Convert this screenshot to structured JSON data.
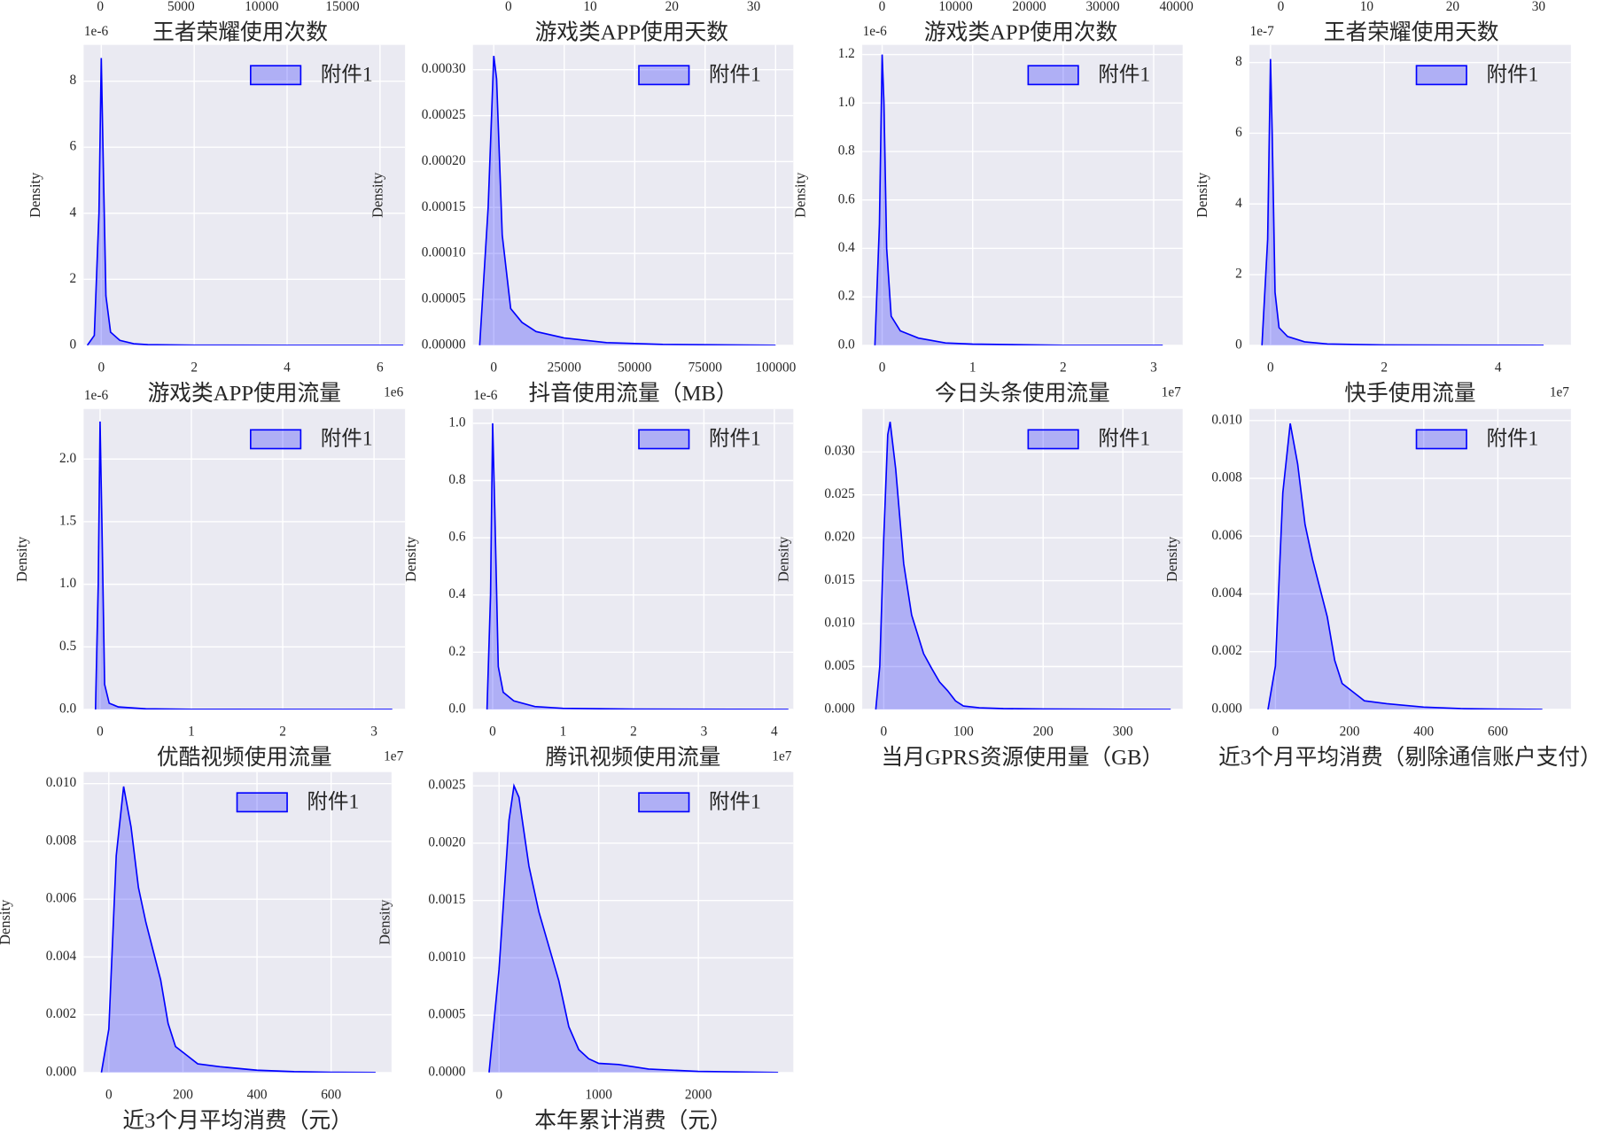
{
  "header_axes": [
    {
      "xticks": [
        0,
        5000,
        10000,
        15000
      ],
      "xlabel": "王者荣耀使用次数"
    },
    {
      "xticks": [
        0,
        10,
        20,
        30
      ],
      "xlabel": "游戏类APP使用天数"
    },
    {
      "xticks": [
        0,
        10000,
        20000,
        30000,
        40000
      ],
      "xlabel": "游戏类APP使用次数"
    },
    {
      "xticks": [
        0,
        10,
        20,
        30
      ],
      "xlabel": "王者荣耀使用天数"
    }
  ],
  "chart_data": [
    {
      "type": "kde",
      "xlabel": "游戏类APP使用流量",
      "ylabel": "Density",
      "x_offset": "1e6",
      "y_offset": "1e-6",
      "xlim": [
        -0.38,
        6.54
      ],
      "ylim": [
        0,
        9.1
      ],
      "xticks": [
        0,
        2,
        4,
        6
      ],
      "yticks": [
        0,
        2,
        4,
        6,
        8
      ],
      "grid": true,
      "x": [
        -0.3,
        -0.15,
        -0.05,
        0,
        0.05,
        0.1,
        0.2,
        0.4,
        0.7,
        1,
        2,
        4,
        6.5
      ],
      "series": [
        {
          "name": "附件1",
          "color": "#0000ff",
          "values": [
            0,
            0.3,
            4,
            8.7,
            5,
            1.5,
            0.4,
            0.15,
            0.05,
            0.02,
            0.005,
            0,
            0
          ]
        }
      ]
    },
    {
      "type": "kde",
      "xlabel": "抖音使用流量（MB）",
      "ylabel": "Density",
      "xlim": [
        -7400,
        106300
      ],
      "ylim": [
        0,
        0.000327
      ],
      "xticks": [
        0,
        25000,
        50000,
        75000,
        100000
      ],
      "yticks": [
        {
          "value": 0,
          "label": "0.00000"
        },
        {
          "value": 5e-05,
          "label": "0.00005"
        },
        {
          "value": 0.0001,
          "label": "0.00010"
        },
        {
          "value": 0.00015,
          "label": "0.00015"
        },
        {
          "value": 0.0002,
          "label": "0.00020"
        },
        {
          "value": 0.00025,
          "label": "0.00025"
        },
        {
          "value": 0.0003,
          "label": "0.00030"
        }
      ],
      "grid": true,
      "x": [
        -5000,
        -2000,
        0,
        1000,
        3000,
        6000,
        10000,
        15000,
        25000,
        40000,
        60000,
        100000
      ],
      "series": [
        {
          "name": "附件1",
          "color": "#0000ff",
          "values": [
            0,
            0.00015,
            0.000315,
            0.00029,
            0.00012,
            4e-05,
            2.5e-05,
            1.5e-05,
            8e-06,
            3e-06,
            1e-06,
            0
          ]
        }
      ]
    },
    {
      "type": "kde",
      "xlabel": "今日头条使用流量",
      "ylabel": "Density",
      "x_offset": "1e7",
      "y_offset": "1e-6",
      "xlim": [
        -0.22,
        3.32
      ],
      "ylim": [
        0,
        1.24
      ],
      "xticks": [
        0,
        1,
        2,
        3
      ],
      "yticks": [
        {
          "value": 0,
          "label": "0.0"
        },
        {
          "value": 0.2,
          "label": "0.2"
        },
        {
          "value": 0.4,
          "label": "0.4"
        },
        {
          "value": 0.6,
          "label": "0.6"
        },
        {
          "value": 0.8,
          "label": "0.8"
        },
        {
          "value": 1,
          "label": "1.0"
        },
        {
          "value": 1.2,
          "label": "1.2"
        }
      ],
      "grid": true,
      "x": [
        -0.08,
        -0.03,
        0,
        0.02,
        0.05,
        0.1,
        0.2,
        0.4,
        0.7,
        1,
        2,
        3.1
      ],
      "series": [
        {
          "name": "附件1",
          "color": "#0000ff",
          "values": [
            0,
            0.5,
            1.2,
            1.0,
            0.4,
            0.12,
            0.06,
            0.03,
            0.01,
            0.005,
            0,
            0
          ]
        }
      ]
    },
    {
      "type": "kde",
      "xlabel": "快手使用流量",
      "ylabel": "Density",
      "x_offset": "1e7",
      "y_offset": "1e-7",
      "xlim": [
        -0.37,
        5.28
      ],
      "ylim": [
        0,
        8.5
      ],
      "xticks": [
        0,
        2,
        4
      ],
      "yticks": [
        0,
        2,
        4,
        6,
        8
      ],
      "grid": true,
      "x": [
        -0.15,
        -0.05,
        0,
        0.03,
        0.08,
        0.15,
        0.3,
        0.6,
        1,
        2,
        4.8
      ],
      "series": [
        {
          "name": "附件1",
          "color": "#0000ff",
          "values": [
            0,
            3,
            8.1,
            6,
            1.5,
            0.5,
            0.25,
            0.1,
            0.04,
            0.01,
            0
          ]
        }
      ]
    },
    {
      "type": "kde",
      "xlabel": "优酷视频使用流量",
      "ylabel": "Density",
      "x_offset": "1e7",
      "y_offset": "1e-6",
      "xlim": [
        -0.18,
        3.34
      ],
      "ylim": [
        0,
        2.4
      ],
      "xticks": [
        0,
        1,
        2,
        3
      ],
      "yticks": [
        {
          "value": 0,
          "label": "0.0"
        },
        {
          "value": 0.5,
          "label": "0.5"
        },
        {
          "value": 1,
          "label": "1.0"
        },
        {
          "value": 1.5,
          "label": "1.5"
        },
        {
          "value": 2,
          "label": "2.0"
        }
      ],
      "grid": true,
      "x": [
        -0.05,
        -0.02,
        0,
        0.02,
        0.05,
        0.1,
        0.2,
        0.5,
        1,
        3.2
      ],
      "series": [
        {
          "name": "附件1",
          "color": "#0000ff",
          "values": [
            0,
            1,
            2.3,
            1.5,
            0.2,
            0.05,
            0.02,
            0.005,
            0.001,
            0
          ]
        }
      ]
    },
    {
      "type": "kde",
      "xlabel": "腾讯视频使用流量",
      "ylabel": "Density",
      "x_offset": "1e7",
      "y_offset": "1e-6",
      "xlim": [
        -0.28,
        4.27
      ],
      "ylim": [
        0,
        1.05
      ],
      "xticks": [
        0,
        1,
        2,
        3,
        4
      ],
      "yticks": [
        {
          "value": 0,
          "label": "0.0"
        },
        {
          "value": 0.2,
          "label": "0.2"
        },
        {
          "value": 0.4,
          "label": "0.4"
        },
        {
          "value": 0.6,
          "label": "0.6"
        },
        {
          "value": 0.8,
          "label": "0.8"
        },
        {
          "value": 1,
          "label": "1.0"
        }
      ],
      "grid": true,
      "x": [
        -0.08,
        -0.03,
        0,
        0.03,
        0.08,
        0.15,
        0.3,
        0.6,
        1,
        2,
        4.2
      ],
      "series": [
        {
          "name": "附件1",
          "color": "#0000ff",
          "values": [
            0,
            0.4,
            1.0,
            0.7,
            0.15,
            0.06,
            0.03,
            0.01,
            0.004,
            0.001,
            0
          ]
        }
      ]
    },
    {
      "type": "kde",
      "xlabel": "当月GPRS资源使用量（GB）",
      "ylabel": "Density",
      "xlim": [
        -27,
        375
      ],
      "ylim": [
        0,
        0.035
      ],
      "xticks": [
        0,
        100,
        200,
        300
      ],
      "yticks": [
        {
          "value": 0,
          "label": "0.000"
        },
        {
          "value": 0.005,
          "label": "0.005"
        },
        {
          "value": 0.01,
          "label": "0.010"
        },
        {
          "value": 0.015,
          "label": "0.015"
        },
        {
          "value": 0.02,
          "label": "0.020"
        },
        {
          "value": 0.025,
          "label": "0.025"
        },
        {
          "value": 0.03,
          "label": "0.030"
        }
      ],
      "grid": true,
      "x": [
        -10,
        -5,
        0,
        5,
        8,
        15,
        25,
        35,
        50,
        60,
        70,
        80,
        90,
        100,
        120,
        150,
        200,
        300,
        360
      ],
      "series": [
        {
          "name": "附件1",
          "color": "#0000ff",
          "values": [
            0,
            0.005,
            0.02,
            0.032,
            0.0335,
            0.028,
            0.017,
            0.011,
            0.0065,
            0.0048,
            0.0032,
            0.0022,
            0.001,
            0.0004,
            0.0002,
            0.0001,
            5e-05,
            2e-05,
            0
          ]
        }
      ]
    },
    {
      "type": "kde",
      "xlabel": "近3个月平均消费（剔除通信账户支付）",
      "ylabel": "Density",
      "xlim": [
        -70,
        797
      ],
      "ylim": [
        0,
        0.0104
      ],
      "xticks": [
        0,
        200,
        400,
        600
      ],
      "yticks": [
        {
          "value": 0,
          "label": "0.000"
        },
        {
          "value": 0.002,
          "label": "0.002"
        },
        {
          "value": 0.004,
          "label": "0.004"
        },
        {
          "value": 0.006,
          "label": "0.006"
        },
        {
          "value": 0.008,
          "label": "0.008"
        },
        {
          "value": 0.01,
          "label": "0.010"
        }
      ],
      "grid": true,
      "x": [
        -20,
        0,
        20,
        40,
        60,
        80,
        100,
        120,
        140,
        160,
        180,
        200,
        240,
        300,
        400,
        500,
        600,
        720
      ],
      "series": [
        {
          "name": "附件1",
          "color": "#0000ff",
          "values": [
            0,
            0.0015,
            0.0075,
            0.0099,
            0.0085,
            0.0064,
            0.0052,
            0.0042,
            0.0032,
            0.0017,
            0.0009,
            0.0007,
            0.0003,
            0.0002,
            8e-05,
            3e-05,
            1e-05,
            0
          ]
        }
      ]
    },
    {
      "type": "kde",
      "xlabel": "近3个月平均消费（元）",
      "ylabel": "Density",
      "xlim": [
        -68,
        763
      ],
      "ylim": [
        0,
        0.0104
      ],
      "xticks": [
        0,
        200,
        400,
        600
      ],
      "yticks": [
        {
          "value": 0,
          "label": "0.000"
        },
        {
          "value": 0.002,
          "label": "0.002"
        },
        {
          "value": 0.004,
          "label": "0.004"
        },
        {
          "value": 0.006,
          "label": "0.006"
        },
        {
          "value": 0.008,
          "label": "0.008"
        },
        {
          "value": 0.01,
          "label": "0.010"
        }
      ],
      "grid": true,
      "x": [
        -20,
        0,
        20,
        40,
        60,
        80,
        100,
        120,
        140,
        160,
        180,
        200,
        240,
        300,
        400,
        500,
        600,
        720
      ],
      "series": [
        {
          "name": "附件1",
          "color": "#0000ff",
          "values": [
            0,
            0.0015,
            0.0075,
            0.0099,
            0.0085,
            0.0064,
            0.0052,
            0.0042,
            0.0032,
            0.0017,
            0.0009,
            0.0007,
            0.0003,
            0.0002,
            8e-05,
            3e-05,
            1e-05,
            0
          ]
        }
      ]
    },
    {
      "type": "kde",
      "xlabel": "本年累计消费（元）",
      "ylabel": "Density",
      "xlim": [
        -262,
        2953
      ],
      "ylim": [
        0,
        0.00262
      ],
      "xticks": [
        0,
        1000,
        2000
      ],
      "yticks": [
        {
          "value": 0,
          "label": "0.0000"
        },
        {
          "value": 0.0005,
          "label": "0.0005"
        },
        {
          "value": 0.001,
          "label": "0.0010"
        },
        {
          "value": 0.0015,
          "label": "0.0015"
        },
        {
          "value": 0.002,
          "label": "0.0020"
        },
        {
          "value": 0.0025,
          "label": "0.0025"
        }
      ],
      "grid": true,
      "x": [
        -100,
        0,
        100,
        150,
        200,
        300,
        400,
        500,
        600,
        700,
        800,
        900,
        1000,
        1200,
        1500,
        2000,
        2800
      ],
      "series": [
        {
          "name": "附件1",
          "color": "#0000ff",
          "values": [
            0,
            0.0009,
            0.0022,
            0.0025,
            0.0024,
            0.0018,
            0.0014,
            0.0011,
            0.0008,
            0.0004,
            0.0002,
            0.00012,
            8e-05,
            7e-05,
            3e-05,
            1e-05,
            0
          ]
        }
      ]
    }
  ]
}
